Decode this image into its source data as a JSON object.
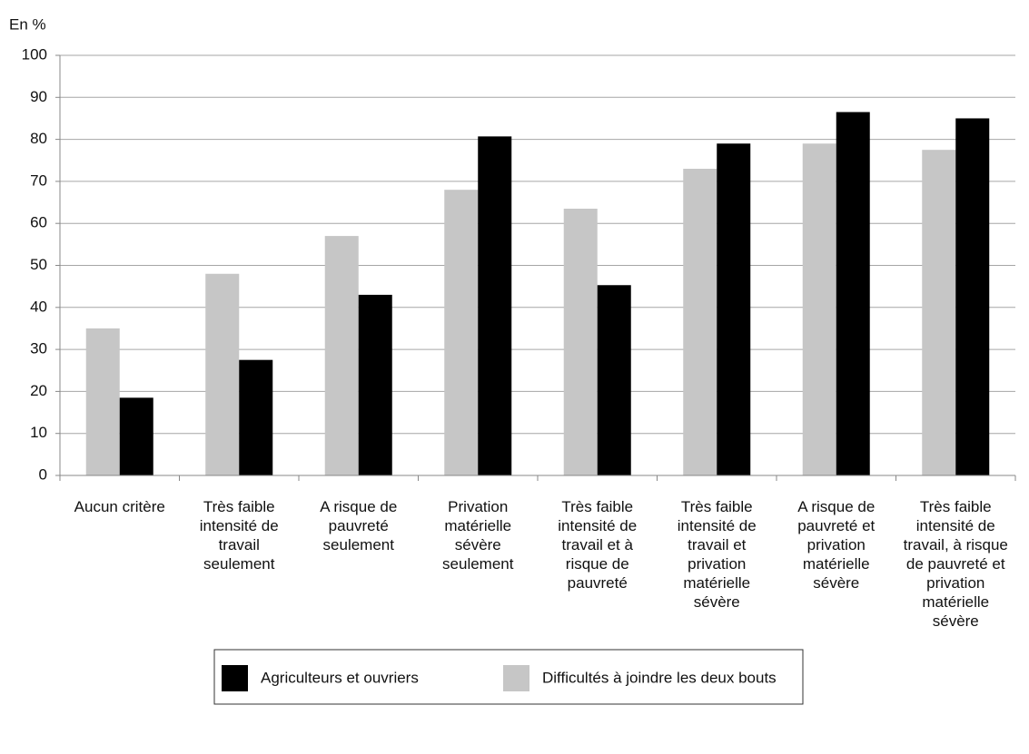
{
  "chart_data": {
    "type": "bar",
    "y_label": "En %",
    "categories": [
      "Aucun critère",
      "Très faible intensité de travail seulement",
      "A risque de pauvreté seulement",
      "Privation matérielle sévère seulement",
      "Très faible intensité de travail et à risque de pauvreté",
      "Très faible intensité de travail et privation matérielle sévère",
      "A risque de pauvreté et privation matérielle sévère",
      "Très faible intensité de travail, à risque de pauvreté et privation matérielle sévère"
    ],
    "series": [
      {
        "name": "Difficultés à joindre les deux bouts",
        "color": "#c6c6c6",
        "values": [
          35,
          48,
          57,
          68,
          63.5,
          73,
          79,
          77.5
        ]
      },
      {
        "name": "Agriculteurs et ouvriers",
        "color": "#000000",
        "values": [
          18.5,
          27.5,
          43,
          80.7,
          45.3,
          79,
          86.5,
          85
        ]
      }
    ],
    "ylim": [
      0,
      100
    ],
    "yticks": [
      0,
      10,
      20,
      30,
      40,
      50,
      60,
      70,
      80,
      90,
      100
    ],
    "grid": true,
    "legend": "bottom"
  }
}
